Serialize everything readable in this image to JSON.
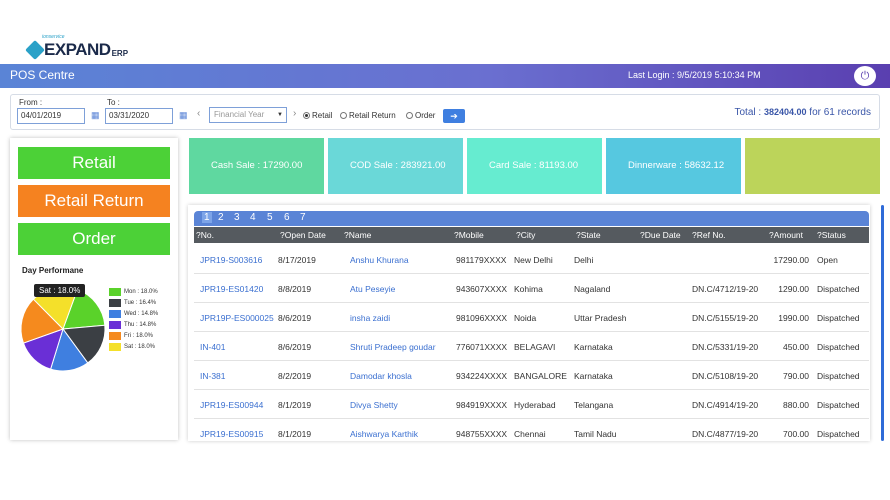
{
  "logo": {
    "brand": "EXPAND",
    "suffix": "ERP",
    "tagline": "ionservice"
  },
  "topbar": {
    "title": "POS Centre",
    "last_login": "Last Login : 9/5/2019 5:10:34 PM",
    "power_icon": "power-icon"
  },
  "filters": {
    "from_label": "From :",
    "from_value": "04/01/2019",
    "to_label": "To :",
    "to_value": "03/31/2020",
    "period_select": "Financial Year",
    "radios": [
      {
        "label": "Retail",
        "selected": true
      },
      {
        "label": "Retail Return",
        "selected": false
      },
      {
        "label": "Order",
        "selected": false
      }
    ],
    "go_icon": "arrow-right-icon",
    "total_prefix": "Total : ",
    "total_value": "382404.00",
    "total_suffix": " for 61 records"
  },
  "left": {
    "buttons": [
      {
        "label": "Retail",
        "color": "#4cd137"
      },
      {
        "label": "Retail Return",
        "color": "#f58220"
      },
      {
        "label": "Order",
        "color": "#4cd137"
      }
    ],
    "perf_title": "Day Performane",
    "tooltip": "Sat : 18.0%",
    "legend": [
      {
        "label": "Mon : 18.0%",
        "value": 18.0,
        "color": "#5ad22a"
      },
      {
        "label": "Tue : 16.4%",
        "value": 16.4,
        "color": "#3b3f44"
      },
      {
        "label": "Wed : 14.8%",
        "value": 14.8,
        "color": "#3f7fe0"
      },
      {
        "label": "Thu : 14.8%",
        "value": 14.8,
        "color": "#6a2fd6"
      },
      {
        "label": "Fri : 18.0%",
        "value": 18.0,
        "color": "#f58a1e"
      },
      {
        "label": "Sat : 18.0%",
        "value": 18.0,
        "color": "#f4e02a"
      }
    ]
  },
  "cards": [
    {
      "label": "Cash Sale : 17290.00",
      "color": "#5fd8a0"
    },
    {
      "label": "COD Sale : 283921.00",
      "color": "#6ad8d8"
    },
    {
      "label": "Card Sale : 81193.00",
      "color": "#66ecd0"
    },
    {
      "label": "Dinnerware : 58632.12",
      "color": "#56c8e0"
    },
    {
      "label": "",
      "color": "#bcd45a"
    }
  ],
  "table": {
    "pages": [
      "1",
      "2",
      "3",
      "4",
      "5",
      "6",
      "7"
    ],
    "columns": [
      "?No.",
      "?Open Date",
      "?Name",
      "?Mobile",
      "?City",
      "?State",
      "?Due Date",
      "?Ref No.",
      "?Amount",
      "?Status"
    ],
    "rows": [
      [
        "JPR19-S003616",
        "8/17/2019",
        "Anshu Khurana",
        "981179XXXX",
        "New Delhi",
        "Delhi",
        "",
        "",
        "17290.00",
        "Open"
      ],
      [
        "JPR19-ES01420",
        "8/8/2019",
        "Atu Peseyie",
        "943607XXXX",
        "Kohima",
        "Nagaland",
        "",
        "DN.C/4712/19-20",
        "1290.00",
        "Dispatched"
      ],
      [
        "JPR19P-ES000025",
        "8/6/2019",
        "insha zaidi",
        "981096XXXX",
        "Noida",
        "Uttar Pradesh",
        "",
        "DN.C/5155/19-20",
        "1990.00",
        "Dispatched"
      ],
      [
        "IN-401",
        "8/6/2019",
        "Shruti Pradeep goudar",
        "776071XXXX",
        "BELAGAVI",
        "Karnataka",
        "",
        "DN.C/5331/19-20",
        "450.00",
        "Dispatched"
      ],
      [
        "IN-381",
        "8/2/2019",
        "Damodar khosla",
        "934224XXXX",
        "BANGALORE",
        "Karnataka",
        "",
        "DN.C/5108/19-20",
        "790.00",
        "Dispatched"
      ],
      [
        "JPR19-ES00944",
        "8/1/2019",
        "Divya Shetty",
        "984919XXXX",
        "Hyderabad",
        "Telangana",
        "",
        "DN.C/4914/19-20",
        "880.00",
        "Dispatched"
      ],
      [
        "JPR19-ES00915",
        "8/1/2019",
        "Aishwarya Karthik",
        "948755XXXX",
        "Chennai",
        "Tamil Nadu",
        "",
        "DN.C/4877/19-20",
        "700.00",
        "Dispatched"
      ]
    ]
  }
}
